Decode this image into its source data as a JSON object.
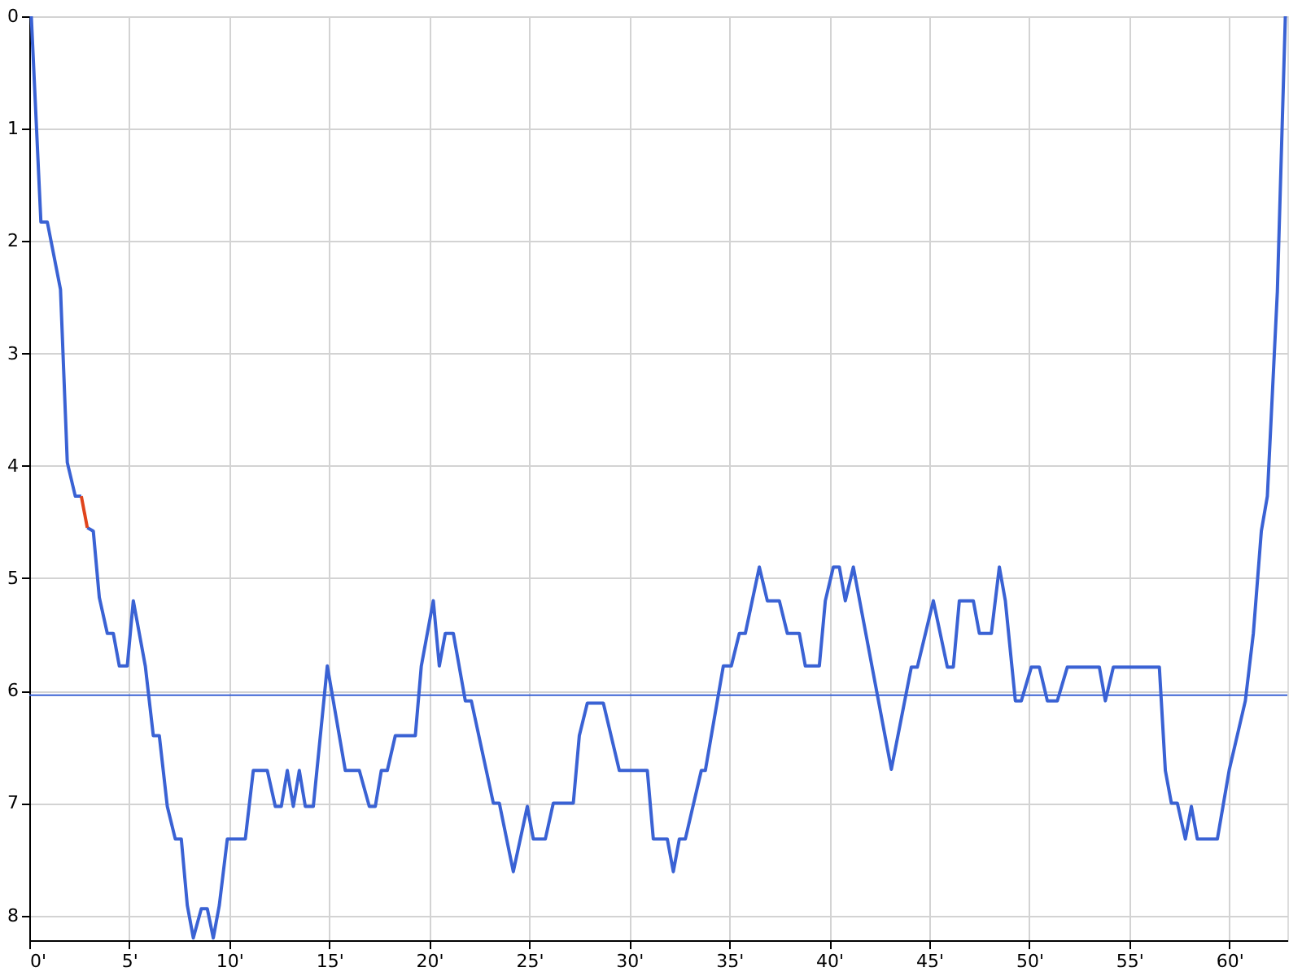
{
  "chart_data": {
    "type": "line",
    "xlim": [
      0,
      62.9
    ],
    "ylim": [
      8.22,
      0
    ],
    "xticks": [
      {
        "value": 0,
        "label": "0'"
      },
      {
        "value": 5,
        "label": "5'"
      },
      {
        "value": 10,
        "label": "10'"
      },
      {
        "value": 15,
        "label": "15'"
      },
      {
        "value": 20,
        "label": "20'"
      },
      {
        "value": 25,
        "label": "25'"
      },
      {
        "value": 30,
        "label": "30'"
      },
      {
        "value": 35,
        "label": "35'"
      },
      {
        "value": 40,
        "label": "40'"
      },
      {
        "value": 45,
        "label": "45'"
      },
      {
        "value": 50,
        "label": "50'"
      },
      {
        "value": 55,
        "label": "55'"
      },
      {
        "value": 60,
        "label": "60'"
      }
    ],
    "yticks": [
      0,
      1,
      2,
      3,
      4,
      5,
      6,
      7,
      8
    ],
    "grid": true,
    "marker": "none",
    "line_style": "solid",
    "ref_lines": [
      {
        "axis": "y",
        "value": 6.04,
        "color": "#3a62d4"
      }
    ],
    "series": [
      {
        "color": "#3a62d4",
        "x": [
          0.1,
          0.58,
          0.9,
          1.56,
          1.9,
          2.3,
          2.6,
          2.75,
          2.9,
          3.2,
          3.5,
          3.9,
          4.2,
          4.5,
          4.9,
          5.2,
          5.8,
          6.2,
          6.5,
          6.9,
          7.3,
          7.6,
          7.9,
          8.2,
          8.6,
          8.9,
          9.2,
          9.5,
          9.9,
          10.8,
          11.2,
          11.9,
          12.3,
          12.6,
          12.9,
          13.2,
          13.5,
          13.8,
          14.2,
          14.9,
          15.8,
          16.5,
          17.0,
          17.3,
          17.6,
          17.9,
          18.3,
          19.3,
          19.6,
          20.2,
          20.5,
          20.8,
          21.2,
          21.8,
          22.1,
          23.2,
          23.5,
          24.2,
          24.9,
          25.2,
          25.8,
          26.2,
          27.2,
          27.5,
          27.9,
          28.7,
          29.5,
          30.9,
          31.2,
          31.9,
          32.2,
          32.5,
          32.8,
          33.6,
          33.8,
          34.7,
          35.1,
          35.5,
          35.8,
          36.5,
          36.9,
          37.5,
          37.9,
          38.5,
          38.8,
          39.5,
          39.8,
          40.2,
          40.5,
          40.8,
          41.2,
          43.1,
          44.1,
          44.4,
          45.2,
          45.9,
          46.2,
          46.5,
          47.2,
          47.5,
          48.1,
          48.5,
          48.8,
          49.3,
          49.6,
          50.1,
          50.5,
          50.9,
          51.4,
          51.9,
          53.5,
          53.8,
          54.2,
          56.5,
          56.8,
          57.1,
          57.4,
          57.8,
          58.1,
          58.4,
          59.4,
          60.0,
          60.8,
          61.2,
          61.6,
          61.9,
          62.4,
          62.8
        ],
        "values": [
          0,
          1.83,
          1.83,
          2.43,
          3.97,
          4.27,
          4.27,
          null,
          4.55,
          4.58,
          5.17,
          5.49,
          5.49,
          5.78,
          5.78,
          5.2,
          5.78,
          6.4,
          6.4,
          7.03,
          7.32,
          7.32,
          7.91,
          8.2,
          7.94,
          7.94,
          8.2,
          7.91,
          7.32,
          7.32,
          6.71,
          6.71,
          7.03,
          7.03,
          6.71,
          7.03,
          6.71,
          7.03,
          7.03,
          5.78,
          6.71,
          6.71,
          7.03,
          7.03,
          6.71,
          6.71,
          6.4,
          6.4,
          5.78,
          5.2,
          5.78,
          5.49,
          5.49,
          6.09,
          6.09,
          7.0,
          7.0,
          7.61,
          7.03,
          7.32,
          7.32,
          7.0,
          7.0,
          6.4,
          6.11,
          6.11,
          6.71,
          6.71,
          7.32,
          7.32,
          7.61,
          7.32,
          7.32,
          6.71,
          6.71,
          5.78,
          5.78,
          5.49,
          5.49,
          4.9,
          5.2,
          5.2,
          5.49,
          5.49,
          5.78,
          5.78,
          5.2,
          4.9,
          4.9,
          5.2,
          4.9,
          6.7,
          5.79,
          5.79,
          5.2,
          5.79,
          5.79,
          5.2,
          5.2,
          5.49,
          5.49,
          4.9,
          5.2,
          6.09,
          6.09,
          5.79,
          5.79,
          6.09,
          6.09,
          5.79,
          5.79,
          6.09,
          5.79,
          5.79,
          6.71,
          7.0,
          7.0,
          7.32,
          7.03,
          7.32,
          7.32,
          6.7,
          6.09,
          5.49,
          4.58,
          4.27,
          2.45,
          0
        ]
      },
      {
        "color": "#e0441c",
        "x": [
          2.6,
          2.9
        ],
        "values": [
          4.27,
          4.55
        ]
      }
    ]
  }
}
